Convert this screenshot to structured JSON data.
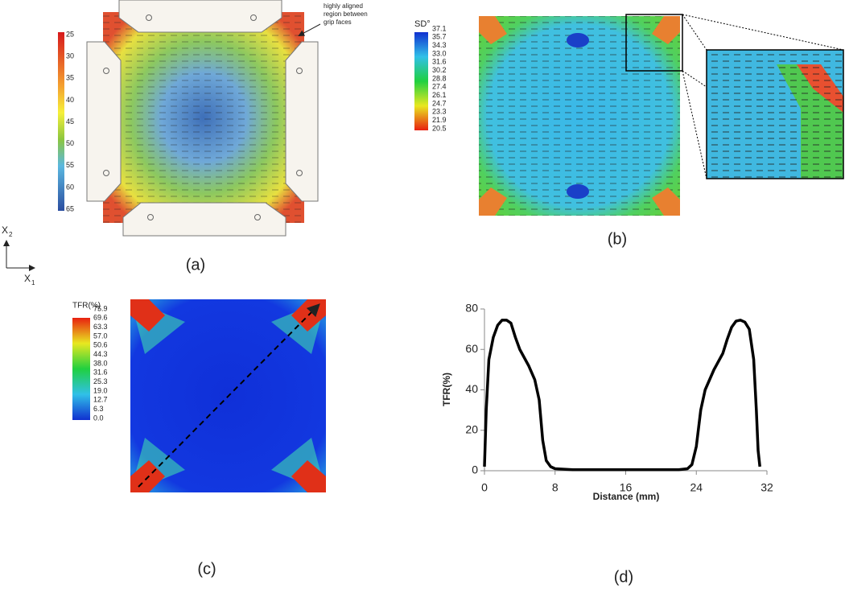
{
  "axes_indicator": {
    "letter": "X",
    "subscripts": [
      "2",
      "1"
    ]
  },
  "panel_a": {
    "label": "(a)",
    "colorbar_ticks": [
      "25",
      "30",
      "35",
      "40",
      "45",
      "50",
      "55",
      "60",
      "65"
    ],
    "annotation": [
      "highly aligned",
      "region between",
      "grip faces"
    ]
  },
  "panel_b": {
    "label": "(b)",
    "colorbar_title": "SD°",
    "colorbar_ticks": [
      "37.1",
      "35.7",
      "34.3",
      "33.0",
      "31.6",
      "30.2",
      "28.8",
      "27.4",
      "26.1",
      "24.7",
      "23.3",
      "21.9",
      "20.5"
    ]
  },
  "panel_c": {
    "label": "(c)",
    "colorbar_title": "TFR(%)",
    "colorbar_ticks": [
      "75.9",
      "69.6",
      "63.3",
      "57.0",
      "50.6",
      "44.3",
      "38.0",
      "31.6",
      "25.3",
      "19.0",
      "12.7",
      "6.3",
      "0.0"
    ]
  },
  "chart_data": {
    "type": "line",
    "panel_label": "(d)",
    "xlabel": "Distance (mm)",
    "ylabel": "TFR(%)",
    "color": "#000000",
    "x": [
      0,
      0.2,
      0.5,
      1,
      1.5,
      2,
      2.5,
      3,
      3.5,
      4,
      5,
      5.7,
      6.2,
      6.6,
      7,
      7.5,
      8,
      10,
      16,
      22,
      23,
      23.5,
      24,
      24.5,
      25,
      26,
      27,
      27.5,
      28,
      28.5,
      29,
      29.5,
      30,
      30.5,
      30.8,
      31,
      31.2
    ],
    "values": [
      2,
      30,
      55,
      66,
      72,
      74.5,
      74.5,
      73,
      66,
      60,
      52,
      45,
      35,
      15,
      5,
      2,
      1,
      0.5,
      0.5,
      0.5,
      1,
      3,
      12,
      30,
      40,
      50,
      58,
      65,
      71,
      74,
      74.5,
      73.5,
      70,
      55,
      30,
      10,
      2
    ],
    "xlim": [
      0,
      32
    ],
    "ylim": [
      0,
      80
    ],
    "xticks": [
      0,
      8,
      16,
      24,
      32
    ],
    "yticks": [
      0,
      20,
      40,
      60,
      80
    ]
  }
}
